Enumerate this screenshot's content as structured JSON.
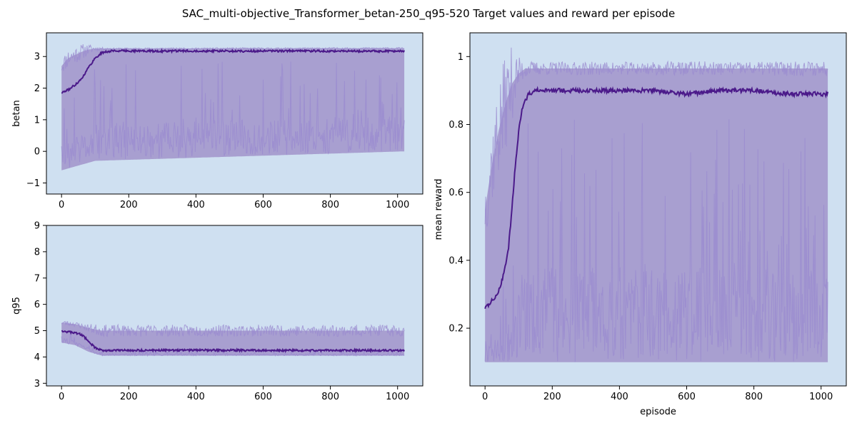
{
  "figure": {
    "title": "SAC_multi-objective_Transformer_betan-250_q95-520 Target values and reward per episode"
  },
  "colors": {
    "plot_background": "#cfe0f1",
    "band_fill": "#a89fd0",
    "spike_line": "#9a8bd0",
    "mean_line": "#4b1a8a"
  },
  "chart_data": [
    {
      "type": "line",
      "id": "betan",
      "title": "",
      "xlabel": "",
      "ylabel": "betan",
      "xlim": [
        -45,
        1075
      ],
      "ylim": [
        -1.35,
        3.75
      ],
      "xticks": [
        0,
        200,
        400,
        600,
        800,
        1000
      ],
      "yticks": [
        -1,
        0,
        1,
        2,
        3
      ],
      "grid": false,
      "series": [
        {
          "role": "mean",
          "x": [
            0,
            20,
            40,
            60,
            80,
            100,
            120,
            150,
            200,
            300,
            400,
            500,
            600,
            700,
            800,
            900,
            1000,
            1020
          ],
          "values": [
            1.85,
            1.95,
            2.1,
            2.3,
            2.65,
            2.95,
            3.12,
            3.18,
            3.18,
            3.17,
            3.18,
            3.17,
            3.17,
            3.18,
            3.17,
            3.17,
            3.17,
            3.18
          ]
        },
        {
          "role": "upper",
          "x": [
            0,
            20,
            40,
            60,
            80,
            100,
            1020
          ],
          "values": [
            2.7,
            2.95,
            3.05,
            3.15,
            3.22,
            3.25,
            3.26
          ]
        },
        {
          "role": "lower",
          "x": [
            0,
            100,
            1020
          ],
          "values": [
            -0.6,
            -0.3,
            0.0
          ]
        }
      ]
    },
    {
      "type": "line",
      "id": "q95",
      "title": "",
      "xlabel": "",
      "ylabel": "q95",
      "xlim": [
        -45,
        1075
      ],
      "ylim": [
        2.9,
        9.0
      ],
      "xticks": [
        0,
        200,
        400,
        600,
        800,
        1000
      ],
      "yticks": [
        3,
        4,
        5,
        6,
        7,
        8,
        9
      ],
      "grid": false,
      "series": [
        {
          "role": "mean",
          "x": [
            0,
            20,
            40,
            60,
            80,
            100,
            120,
            200,
            400,
            600,
            800,
            1000,
            1020
          ],
          "values": [
            5.0,
            4.95,
            4.92,
            4.85,
            4.6,
            4.35,
            4.25,
            4.25,
            4.26,
            4.25,
            4.25,
            4.25,
            4.25
          ]
        },
        {
          "role": "upper",
          "x": [
            0,
            40,
            80,
            120,
            1020
          ],
          "values": [
            5.3,
            5.25,
            5.1,
            5.0,
            5.0
          ]
        },
        {
          "role": "lower",
          "x": [
            0,
            40,
            80,
            120,
            1020
          ],
          "values": [
            4.55,
            4.45,
            4.2,
            4.05,
            4.05
          ]
        }
      ]
    },
    {
      "type": "line",
      "id": "reward",
      "title": "",
      "xlabel": "episode",
      "ylabel": "mean reward",
      "xlim": [
        -45,
        1075
      ],
      "ylim": [
        0.03,
        1.07
      ],
      "xticks": [
        0,
        200,
        400,
        600,
        800,
        1000
      ],
      "yticks": [
        0.2,
        0.4,
        0.6,
        0.8,
        1.0
      ],
      "grid": false,
      "series": [
        {
          "role": "mean",
          "x": [
            0,
            10,
            20,
            30,
            40,
            50,
            60,
            70,
            80,
            90,
            100,
            110,
            120,
            130,
            150,
            200,
            300,
            400,
            500,
            600,
            700,
            800,
            900,
            1000,
            1020
          ],
          "values": [
            0.26,
            0.27,
            0.28,
            0.29,
            0.31,
            0.34,
            0.38,
            0.44,
            0.55,
            0.68,
            0.78,
            0.84,
            0.87,
            0.89,
            0.9,
            0.9,
            0.9,
            0.9,
            0.9,
            0.89,
            0.9,
            0.9,
            0.89,
            0.89,
            0.89
          ]
        },
        {
          "role": "upper",
          "x": [
            0,
            20,
            40,
            60,
            80,
            100,
            120,
            150,
            1020
          ],
          "values": [
            0.55,
            0.68,
            0.78,
            0.86,
            0.92,
            0.95,
            0.965,
            0.965,
            0.965
          ]
        },
        {
          "role": "lower",
          "x": [
            0,
            1020
          ],
          "values": [
            0.1,
            0.1
          ]
        }
      ]
    }
  ]
}
